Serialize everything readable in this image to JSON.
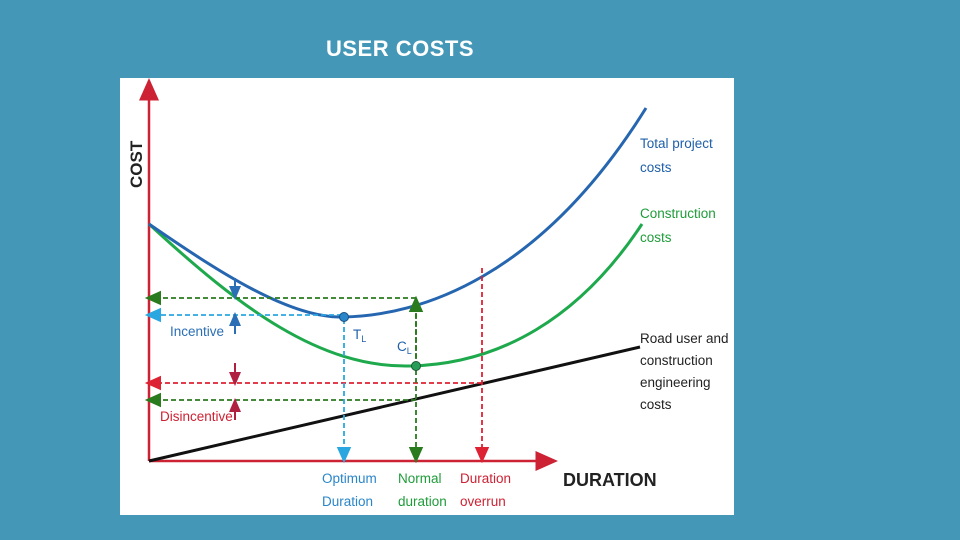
{
  "slide": {
    "title": "USER COSTS"
  },
  "axes": {
    "y_label": "COST",
    "x_label": "DURATION"
  },
  "curves": {
    "total": {
      "line1": "Total project",
      "line2": "costs",
      "color": "#2666b0"
    },
    "construction": {
      "line1": "Construction",
      "line2": "costs",
      "color": "#1ea94c"
    },
    "road_user": {
      "line1": "Road user and",
      "line2": "construction",
      "line3": "engineering",
      "line4": "costs",
      "color": "#111111"
    }
  },
  "points": {
    "tl": "T",
    "tl_sub": "L",
    "cl": "C",
    "cl_sub": "L"
  },
  "annotations": {
    "incentive": "Incentive",
    "disincentive": "Disincentive"
  },
  "durations": {
    "optimum": {
      "line1": "Optimum",
      "line2": "Duration",
      "color": "#2a86c8"
    },
    "normal": {
      "line1": "Normal",
      "line2": "duration",
      "color": "#1f9c3a"
    },
    "overrun": {
      "line1": "Duration",
      "line2": "overrun",
      "color": "#cc2233"
    }
  },
  "colors": {
    "axis": "#cc2233",
    "background": "#4497b7",
    "dashed_green": "#2a7a1e",
    "dashed_cyan": "#2aa7e0",
    "dashed_red": "#dd2233"
  }
}
